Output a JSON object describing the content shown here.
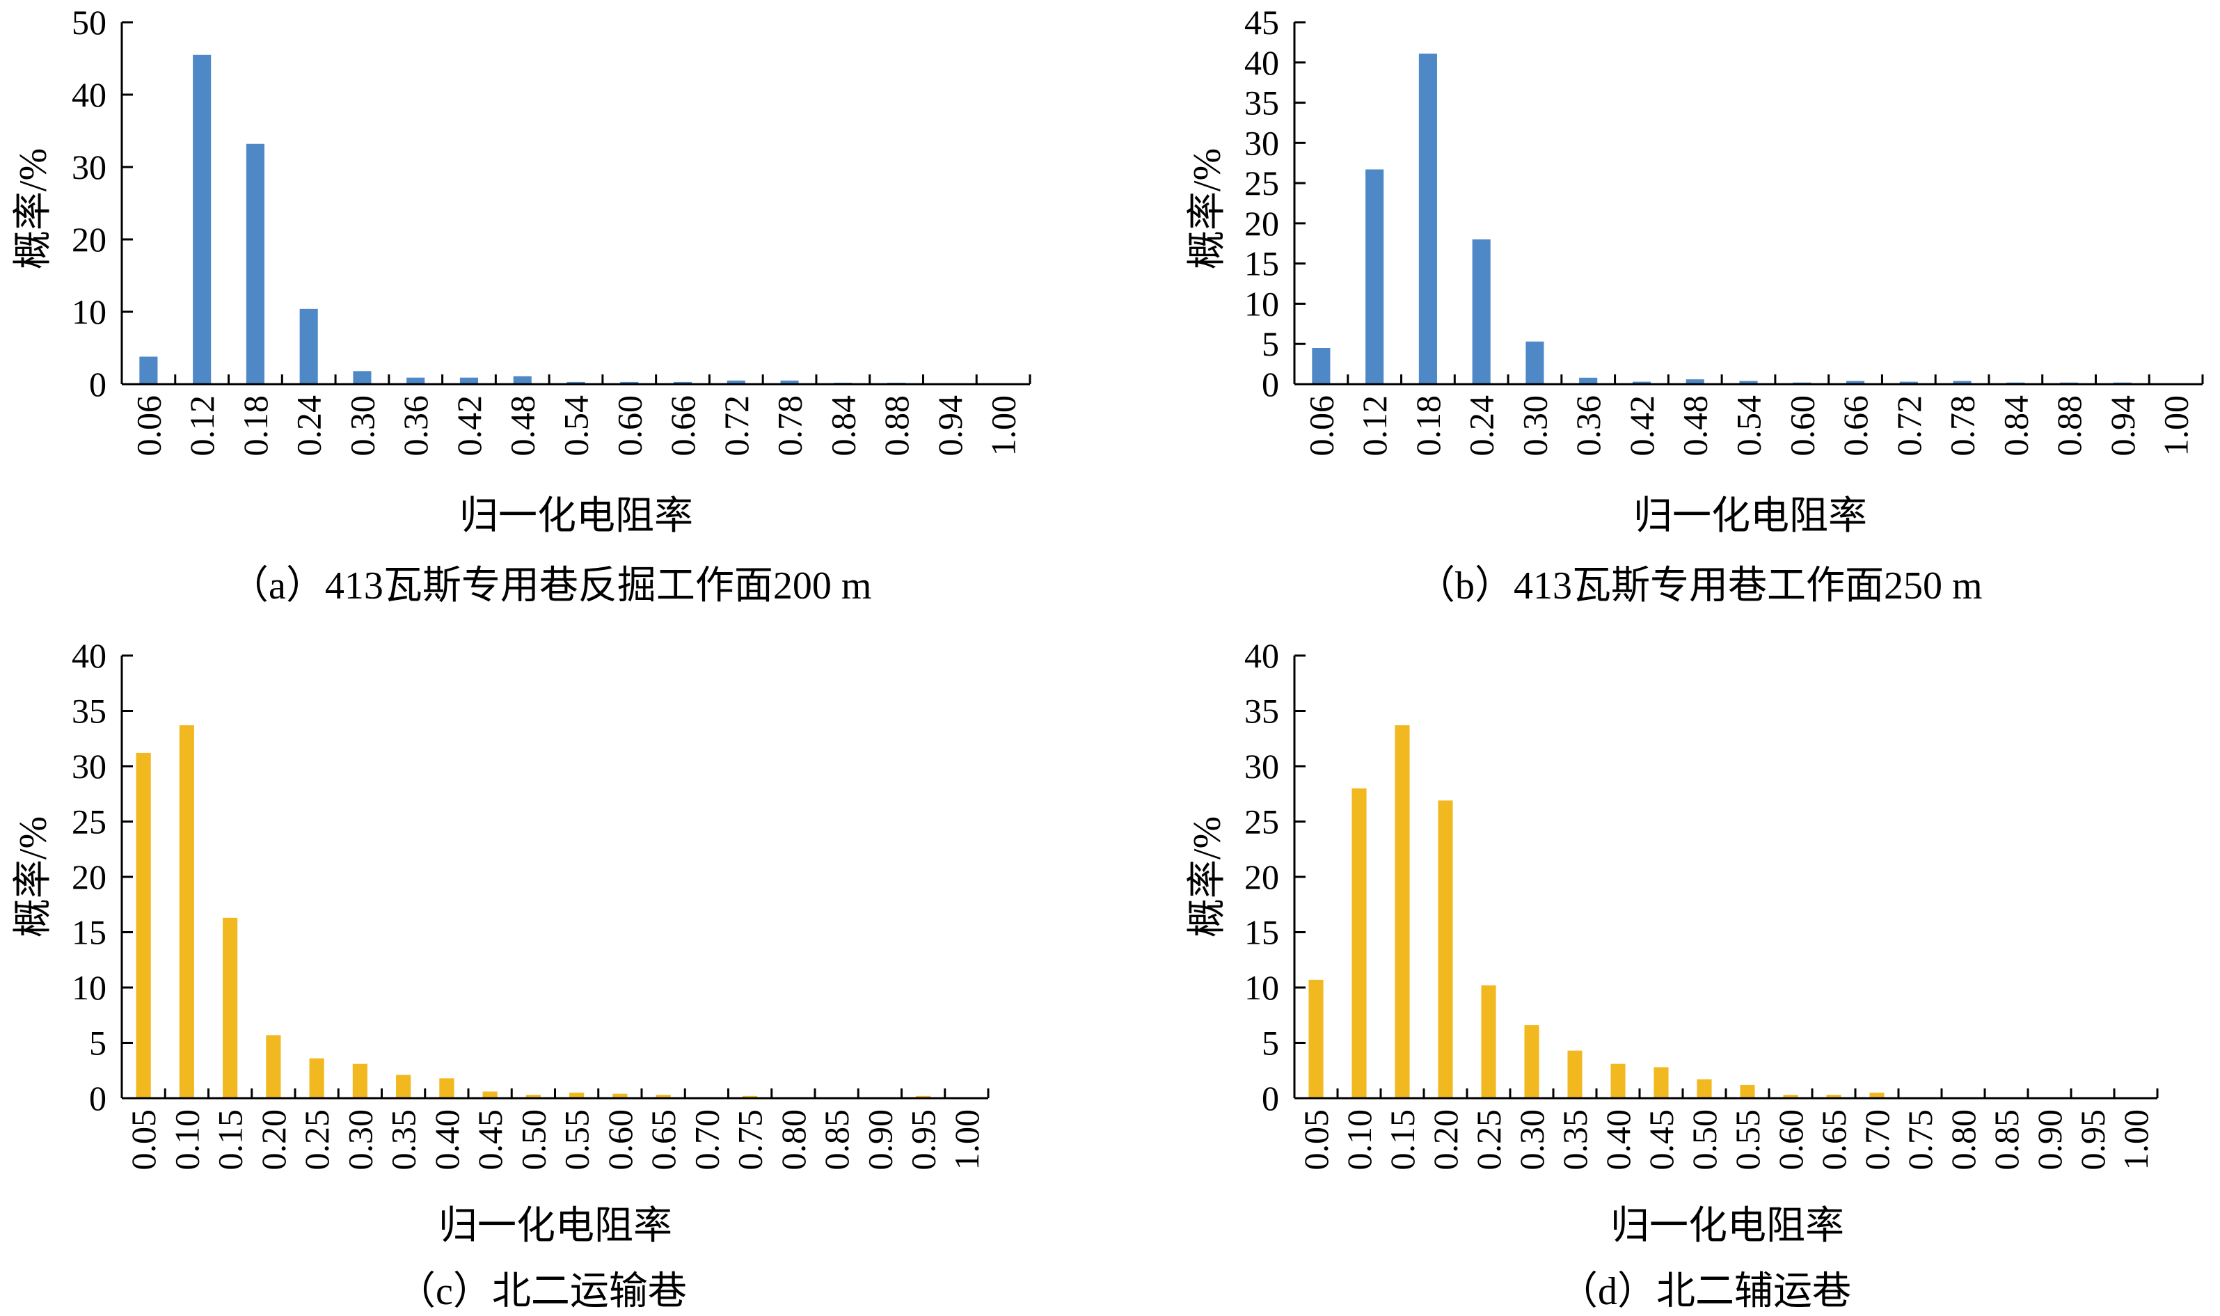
{
  "chart_data": [
    {
      "type": "bar",
      "caption": "（a）413瓦斯专用巷反掘工作面200 m",
      "xlabel": "归一化电阻率",
      "ylabel": "概率/%",
      "ylim": [
        0,
        50
      ],
      "yticks": [
        0,
        10,
        20,
        30,
        40,
        50
      ],
      "categories": [
        "0.06",
        "0.12",
        "0.18",
        "0.24",
        "0.30",
        "0.36",
        "0.42",
        "0.48",
        "0.54",
        "0.60",
        "0.66",
        "0.72",
        "0.78",
        "0.84",
        "0.88",
        "0.94",
        "1.00"
      ],
      "values": [
        3.8,
        45.5,
        33.2,
        10.4,
        1.8,
        0.9,
        0.9,
        1.1,
        0.3,
        0.3,
        0.3,
        0.5,
        0.5,
        0.2,
        0.2,
        0,
        0
      ],
      "color": "#4f88c6"
    },
    {
      "type": "bar",
      "caption": "（b）413瓦斯专用巷工作面250 m",
      "xlabel": "归一化电阻率",
      "ylabel": "概率/%",
      "ylim": [
        0,
        45
      ],
      "yticks": [
        0,
        5,
        10,
        15,
        20,
        25,
        30,
        35,
        40,
        45
      ],
      "categories": [
        "0.06",
        "0.12",
        "0.18",
        "0.24",
        "0.30",
        "0.36",
        "0.42",
        "0.48",
        "0.54",
        "0.60",
        "0.66",
        "0.72",
        "0.78",
        "0.84",
        "0.88",
        "0.94",
        "1.00"
      ],
      "values": [
        4.5,
        26.7,
        41.1,
        18.0,
        5.3,
        0.8,
        0.3,
        0.6,
        0.4,
        0.2,
        0.4,
        0.3,
        0.4,
        0.2,
        0.2,
        0.2,
        0
      ],
      "color": "#4f88c6"
    },
    {
      "type": "bar",
      "caption": "（c）北二运输巷",
      "xlabel": "归一化电阻率",
      "ylabel": "概率/%",
      "ylim": [
        0,
        40
      ],
      "yticks": [
        0,
        5,
        10,
        15,
        20,
        25,
        30,
        35,
        40
      ],
      "categories": [
        "0.05",
        "0.10",
        "0.15",
        "0.20",
        "0.25",
        "0.30",
        "0.35",
        "0.40",
        "0.45",
        "0.50",
        "0.55",
        "0.60",
        "0.65",
        "0.70",
        "0.75",
        "0.80",
        "0.85",
        "0.90",
        "0.95",
        "1.00"
      ],
      "values": [
        31.2,
        33.7,
        16.3,
        5.7,
        3.6,
        3.1,
        2.1,
        1.8,
        0.6,
        0.3,
        0.5,
        0.4,
        0.3,
        0.1,
        0.2,
        0.1,
        0.1,
        0.1,
        0.2,
        0
      ],
      "color": "#f2b81f"
    },
    {
      "type": "bar",
      "caption": "（d）北二辅运巷",
      "xlabel": "归一化电阻率",
      "ylabel": "概率/%",
      "ylim": [
        0,
        40
      ],
      "yticks": [
        0,
        5,
        10,
        15,
        20,
        25,
        30,
        35,
        40
      ],
      "categories": [
        "0.05",
        "0.10",
        "0.15",
        "0.20",
        "0.25",
        "0.30",
        "0.35",
        "0.40",
        "0.45",
        "0.50",
        "0.55",
        "0.60",
        "0.65",
        "0.70",
        "0.75",
        "0.80",
        "0.85",
        "0.90",
        "0.95",
        "1.00"
      ],
      "values": [
        10.7,
        28.0,
        33.7,
        26.9,
        10.2,
        6.6,
        4.3,
        3.1,
        2.8,
        1.7,
        1.2,
        0.3,
        0.3,
        0.5,
        0,
        0,
        0,
        0,
        0,
        0
      ],
      "color": "#f2b81f"
    }
  ]
}
